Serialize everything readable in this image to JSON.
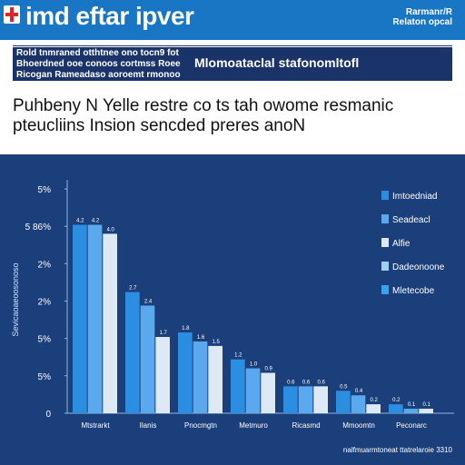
{
  "header": {
    "title": "imd eftar ipver",
    "right_line1": "Rarmanr/R",
    "right_line2": "Relaton opcal",
    "logo_icon": "red-cross-icon"
  },
  "notice": {
    "line1": "Rold tnmraned otthtnee ono tocn9 fot",
    "line2": "Bhoerdned ooe conoos cortmss Roee",
    "line3": "Ricogan Rameadaso aoroemt rmonoo",
    "bold_text": "Mlomoataclal stafonomltofl"
  },
  "heading": {
    "line1": "Puhbeny N Yelle restre co ts tah owome resmanic",
    "line2": "pteucliins Insion sencded preres anoN"
  },
  "colors": {
    "header_bg": "#1976c4",
    "chart_bg": "#1b3f7a",
    "series": [
      "#2b8ee0",
      "#5aa9ee",
      "#dde9f5",
      "#9fd0f2",
      "#3aa1ec"
    ]
  },
  "chart_data": {
    "type": "bar",
    "ylabel": "Sevicaoaeoosonoso",
    "yticks": [
      "5%",
      "5 86%",
      "2%",
      "2%",
      "5%",
      "5%",
      "0"
    ],
    "categories": [
      "Mtstrarkt",
      "Ilanis",
      "Pnocmgtn",
      "Metmuro",
      "Ricasmd",
      "Mmoomtn",
      "Peconarc"
    ],
    "legend": [
      {
        "label": "Imtoedniad",
        "color": "#2b8ee0"
      },
      {
        "label": "Seadeacl",
        "color": "#5aa9ee"
      },
      {
        "label": "Alfie",
        "color": "#dde9f5"
      },
      {
        "label": "Dadeonoone",
        "color": "#9fd0f2"
      },
      {
        "label": "Mletecobe",
        "color": "#3aa1ec"
      }
    ],
    "ylim": [
      0,
      5
    ],
    "series": [
      {
        "values": [
          4.2,
          2.7,
          1.8,
          1.2,
          0.6,
          0.5,
          0.2
        ]
      },
      {
        "values": [
          4.2,
          2.4,
          1.6,
          1.0,
          0.6,
          0.4,
          0.1
        ]
      },
      {
        "values": [
          4.0,
          1.7,
          1.5,
          0.9,
          0.6,
          0.2,
          0.1
        ]
      }
    ],
    "x_footer": "nalfmuarmtoneat ttatrelaroie 3310"
  }
}
